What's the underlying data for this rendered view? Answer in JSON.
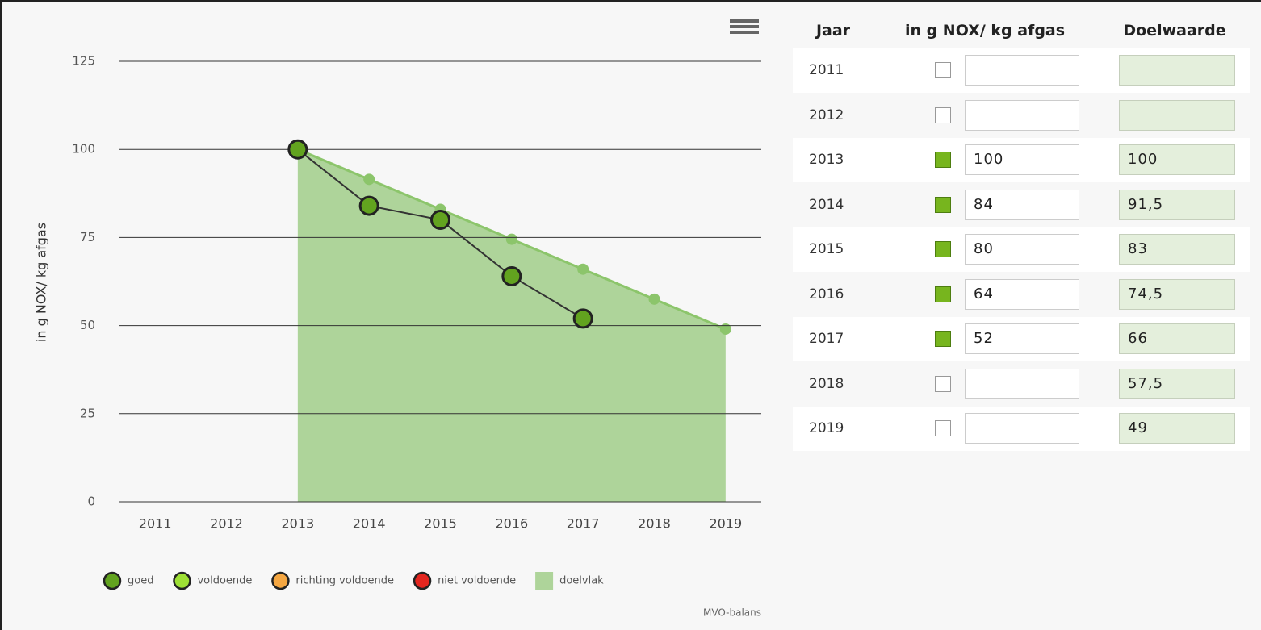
{
  "chart_data": {
    "type": "line",
    "ylabel": "in g NOX/ kg afgas",
    "credit": "MVO-balans",
    "categories": [
      "2011",
      "2012",
      "2013",
      "2014",
      "2015",
      "2016",
      "2017",
      "2018",
      "2019"
    ],
    "series": [
      {
        "name": "doelvlak",
        "type": "area",
        "color": "#aed49a",
        "point_color": "#8cc56b",
        "values": [
          null,
          null,
          100,
          91.5,
          83,
          74.5,
          66,
          57.5,
          49
        ]
      },
      {
        "name": "goed",
        "type": "line",
        "color": "#333333",
        "point_color": "#62a31f",
        "values": [
          null,
          null,
          100,
          84,
          80,
          64,
          52,
          null,
          null
        ]
      }
    ],
    "legend": [
      {
        "name": "goed",
        "color": "#62a31f",
        "marker": "circle"
      },
      {
        "name": "voldoende",
        "color": "#9ee035",
        "marker": "circle"
      },
      {
        "name": "richting voldoende",
        "color": "#f5a742",
        "marker": "circle"
      },
      {
        "name": "niet voldoende",
        "color": "#e3261f",
        "marker": "circle"
      },
      {
        "name": "doelvlak",
        "color": "#aed49a",
        "marker": "square"
      }
    ],
    "ylim": [
      0,
      125
    ],
    "yticks": [
      0,
      25,
      50,
      75,
      100,
      125
    ],
    "grid": true
  },
  "table": {
    "columns": [
      "Jaar",
      "in g NOX/ kg afgas",
      "Doelwaarde"
    ],
    "rows": [
      {
        "year": "2011",
        "checked": false,
        "value": null,
        "target": null
      },
      {
        "year": "2012",
        "checked": false,
        "value": null,
        "target": null
      },
      {
        "year": "2013",
        "checked": true,
        "value": "100",
        "target": "100"
      },
      {
        "year": "2014",
        "checked": true,
        "value": "84",
        "target": "91,5"
      },
      {
        "year": "2015",
        "checked": true,
        "value": "80",
        "target": "83"
      },
      {
        "year": "2016",
        "checked": true,
        "value": "64",
        "target": "74,5"
      },
      {
        "year": "2017",
        "checked": true,
        "value": "52",
        "target": "66"
      },
      {
        "year": "2018",
        "checked": false,
        "value": null,
        "target": "57,5"
      },
      {
        "year": "2019",
        "checked": false,
        "value": null,
        "target": "49"
      }
    ]
  }
}
